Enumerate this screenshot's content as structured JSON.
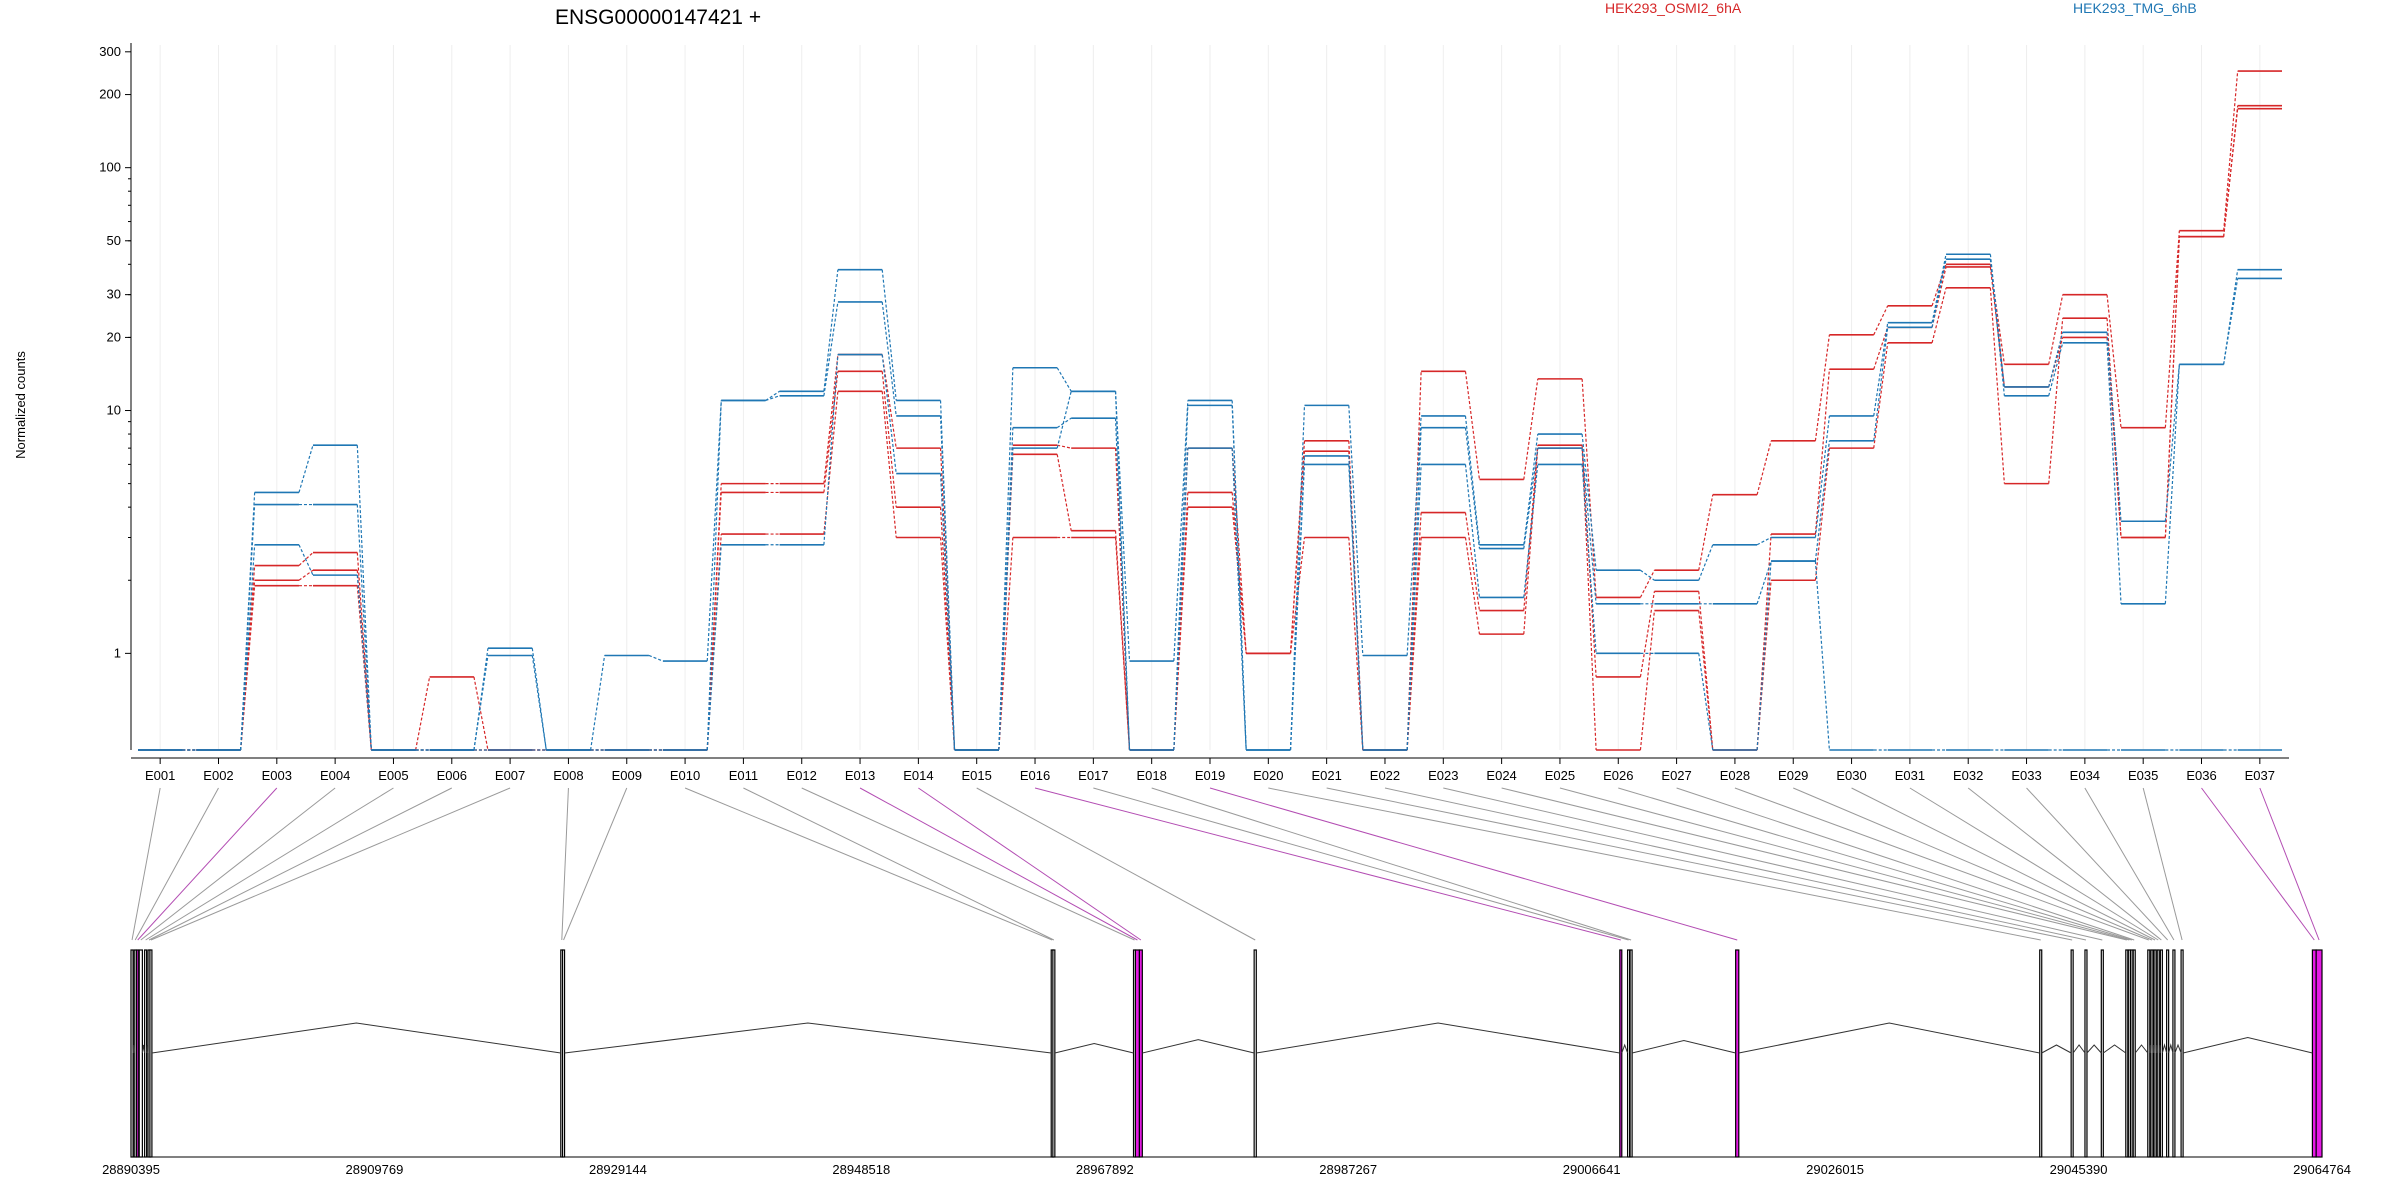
{
  "chart_data": {
    "type": "line",
    "title": "ENSG00000147421 +",
    "ylabel": "Normalized counts",
    "yscale": "log",
    "ylim": [
      0.4,
      320
    ],
    "yticks": [
      1,
      10,
      20,
      30,
      50,
      100,
      200,
      300
    ],
    "grid": "vertical-light",
    "legend": [
      {
        "name": "HEK293_OSMI2_6hA",
        "color": "#d62728"
      },
      {
        "name": "HEK293_TMG_6hB",
        "color": "#1f77b4"
      }
    ],
    "categories": [
      "E001",
      "E002",
      "E003",
      "E004",
      "E005",
      "E006",
      "E007",
      "E008",
      "E009",
      "E010",
      "E011",
      "E012",
      "E013",
      "E014",
      "E015",
      "E016",
      "E017",
      "E018",
      "E019",
      "E020",
      "E021",
      "E022",
      "E023",
      "E024",
      "E025",
      "E026",
      "E027",
      "E028",
      "E029",
      "E030",
      "E031",
      "E032",
      "E033",
      "E034",
      "E035",
      "E036",
      "E037"
    ],
    "series": [
      {
        "group": "HEK293_OSMI2_6hA",
        "color": "#d62728",
        "values": [
          0.4,
          0.4,
          2.3,
          2.6,
          0.4,
          0.8,
          0.4,
          0.4,
          0.4,
          0.4,
          5.0,
          5.0,
          17,
          7.0,
          0.4,
          7.2,
          7.0,
          0.4,
          7.0,
          1.0,
          7.5,
          0.4,
          14.5,
          5.2,
          13.5,
          1.7,
          2.2,
          4.5,
          7.5,
          20.5,
          27,
          40,
          15.5,
          30,
          8.5,
          55,
          250
        ]
      },
      {
        "group": "HEK293_OSMI2_6hA",
        "color": "#d62728",
        "values": [
          0.4,
          0.4,
          2.0,
          2.2,
          0.4,
          0.4,
          0.4,
          0.4,
          0.4,
          0.4,
          4.6,
          4.6,
          14.5,
          4.0,
          0.4,
          6.6,
          3.2,
          0.4,
          4.6,
          1.0,
          6.8,
          0.4,
          3.8,
          1.5,
          7.2,
          0.8,
          1.8,
          0.4,
          3.1,
          14.8,
          22,
          39,
          12.5,
          20,
          3.0,
          52,
          180
        ]
      },
      {
        "group": "HEK293_OSMI2_6hA",
        "color": "#d62728",
        "values": [
          0.4,
          0.4,
          1.9,
          1.9,
          0.4,
          0.4,
          0.4,
          0.4,
          0.4,
          0.4,
          3.1,
          3.1,
          12,
          3.0,
          0.4,
          3.0,
          3.0,
          0.4,
          4.0,
          1.0,
          3.0,
          0.4,
          3.0,
          1.2,
          7.0,
          0.4,
          1.5,
          0.4,
          2.0,
          7.0,
          19,
          32,
          5.0,
          24,
          3.0,
          52,
          175
        ]
      },
      {
        "group": "HEK293_TMG_6hB",
        "color": "#1f77b4",
        "values": [
          0.4,
          0.4,
          4.6,
          7.2,
          0.4,
          0.4,
          1.05,
          0.4,
          0.98,
          0.93,
          11.0,
          12.0,
          38,
          11,
          0.4,
          15,
          12.0,
          0.93,
          11,
          0.4,
          10.5,
          0.98,
          9.5,
          2.8,
          8.0,
          2.2,
          2.0,
          2.8,
          3.0,
          9.5,
          23,
          44,
          12.5,
          21,
          3.5,
          15.5,
          38
        ]
      },
      {
        "group": "HEK293_TMG_6hB",
        "color": "#1f77b4",
        "values": [
          0.4,
          0.4,
          4.1,
          4.1,
          0.4,
          0.4,
          0.98,
          0.4,
          0.4,
          0.4,
          11.0,
          11.5,
          28,
          9.5,
          0.4,
          8.5,
          9.3,
          0.4,
          10.5,
          0.4,
          6.5,
          0.4,
          8.5,
          2.7,
          7.0,
          1.6,
          1.6,
          1.6,
          2.4,
          7.5,
          22,
          42,
          11.5,
          19,
          1.6,
          15.5,
          35
        ]
      },
      {
        "group": "HEK293_TMG_6hB",
        "color": "#1f77b4",
        "values": [
          0.4,
          0.4,
          2.8,
          2.1,
          0.4,
          0.4,
          0.4,
          0.4,
          0.4,
          0.4,
          2.8,
          2.8,
          17,
          5.5,
          0.4,
          7.0,
          12.0,
          0.4,
          7.0,
          0.4,
          6.0,
          0.4,
          6.0,
          1.7,
          6.0,
          1.0,
          1.0,
          0.4,
          2.4,
          0.4,
          0.4,
          0.4,
          0.4,
          0.4,
          0.4,
          0.4,
          0.4
        ]
      }
    ],
    "genome": {
      "xticks": [
        "28890395",
        "28909769",
        "28929144",
        "28948518",
        "28967892",
        "28987267",
        "29006641",
        "29026015",
        "29045390",
        "29064764"
      ],
      "range": [
        28890395,
        29064764
      ],
      "exons": [
        {
          "id": "E001",
          "start": 28890395,
          "end": 28890560,
          "highlight": false
        },
        {
          "id": "E002",
          "start": 28890650,
          "end": 28890760,
          "highlight": false
        },
        {
          "id": "E003",
          "start": 28890850,
          "end": 28891000,
          "highlight": true
        },
        {
          "id": "E004",
          "start": 28891050,
          "end": 28891300,
          "highlight": false
        },
        {
          "id": "E005",
          "start": 28891480,
          "end": 28891600,
          "highlight": false
        },
        {
          "id": "E006",
          "start": 28891750,
          "end": 28891850,
          "highlight": false
        },
        {
          "id": "E007",
          "start": 28891900,
          "end": 28892050,
          "highlight": false
        },
        {
          "id": "E008",
          "start": 28924600,
          "end": 28924740,
          "highlight": false
        },
        {
          "id": "E009",
          "start": 28924740,
          "end": 28924880,
          "highlight": false
        },
        {
          "id": "E010",
          "start": 28963630,
          "end": 28963760,
          "highlight": false
        },
        {
          "id": "E011",
          "start": 28963760,
          "end": 28963900,
          "highlight": false
        },
        {
          "id": "E012",
          "start": 28970180,
          "end": 28970330,
          "highlight": false
        },
        {
          "id": "E013",
          "start": 28970330,
          "end": 28970650,
          "highlight": true
        },
        {
          "id": "E014",
          "start": 28970650,
          "end": 28970880,
          "highlight": true
        },
        {
          "id": "E015",
          "start": 28979780,
          "end": 28979950,
          "highlight": false
        },
        {
          "id": "E016",
          "start": 29008880,
          "end": 29009020,
          "highlight": true
        },
        {
          "id": "E017",
          "start": 29009500,
          "end": 29009640,
          "highlight": false
        },
        {
          "id": "E018",
          "start": 29009700,
          "end": 29009840,
          "highlight": false
        },
        {
          "id": "E019",
          "start": 29018100,
          "end": 29018350,
          "highlight": true
        },
        {
          "id": "E020",
          "start": 29042300,
          "end": 29042440,
          "highlight": false
        },
        {
          "id": "E021",
          "start": 29044800,
          "end": 29044940,
          "highlight": false
        },
        {
          "id": "E022",
          "start": 29045900,
          "end": 29046040,
          "highlight": false
        },
        {
          "id": "E023",
          "start": 29047200,
          "end": 29047340,
          "highlight": false
        },
        {
          "id": "E024",
          "start": 29049150,
          "end": 29049290,
          "highlight": false
        },
        {
          "id": "E025",
          "start": 29049350,
          "end": 29049490,
          "highlight": false
        },
        {
          "id": "E026",
          "start": 29049550,
          "end": 29049690,
          "highlight": false
        },
        {
          "id": "E027",
          "start": 29049740,
          "end": 29049880,
          "highlight": false
        },
        {
          "id": "E028",
          "start": 29050900,
          "end": 29051040,
          "highlight": false
        },
        {
          "id": "E029",
          "start": 29051150,
          "end": 29051290,
          "highlight": false
        },
        {
          "id": "E030",
          "start": 29051400,
          "end": 29051540,
          "highlight": false
        },
        {
          "id": "E031",
          "start": 29051650,
          "end": 29051790,
          "highlight": false
        },
        {
          "id": "E032",
          "start": 29051900,
          "end": 29052040,
          "highlight": false
        },
        {
          "id": "E033",
          "start": 29052400,
          "end": 29052540,
          "highlight": false
        },
        {
          "id": "E034",
          "start": 29052900,
          "end": 29053040,
          "highlight": false
        },
        {
          "id": "E035",
          "start": 29053550,
          "end": 29053700,
          "highlight": false
        },
        {
          "id": "E036",
          "start": 29064000,
          "end": 29064300,
          "highlight": true
        },
        {
          "id": "E037",
          "start": 29064300,
          "end": 29064764,
          "highlight": true
        }
      ]
    }
  }
}
